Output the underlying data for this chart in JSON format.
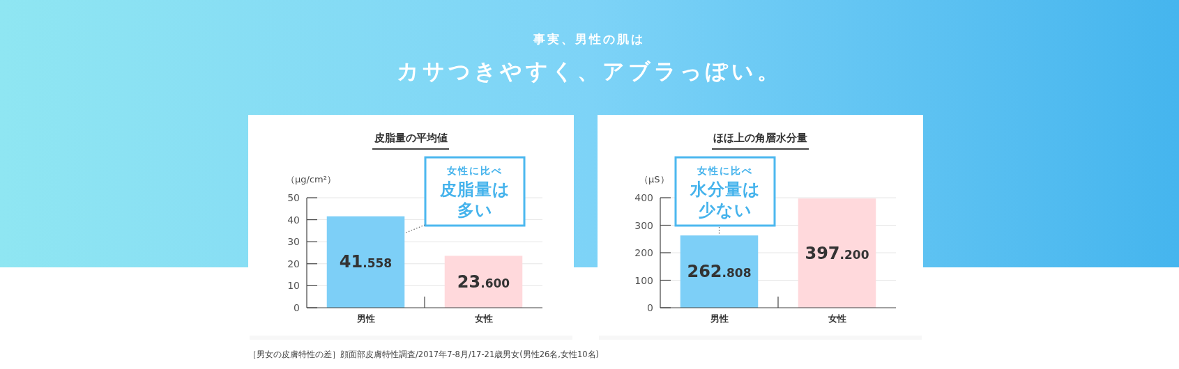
{
  "chart_data": [
    {
      "type": "other",
      "subtitle": "事実、男性の肌は",
      "title": "カサつきやすく、アブラっぽい。",
      "annotations": [
        "［男女の皮膚特性の差］顔面部皮膚特性調査/2017年7-8月/17-21歳男女(男性26名,女性10名)"
      ]
    },
    {
      "type": "bar",
      "title": "皮脂量の平均値",
      "ylabel": "（μg/cm²）",
      "categories": [
        "男性",
        "女性"
      ],
      "values": [
        41.558,
        23.6
      ],
      "colors": [
        "#7dcff7",
        "#ffd9dc"
      ],
      "value_labels": [
        "41.558",
        "23.600"
      ],
      "ylim": [
        0,
        50
      ],
      "yticks": [
        0,
        10,
        20,
        30,
        40,
        50
      ],
      "grid": "y",
      "annotations": [
        "女性に比べ皮脂量は多い"
      ]
    },
    {
      "type": "bar",
      "title": "ほほ上の角層水分量",
      "ylabel": "（μS）",
      "categories": [
        "男性",
        "女性"
      ],
      "values": [
        262.808,
        397.2
      ],
      "colors": [
        "#7dcff7",
        "#ffd9dc"
      ],
      "value_labels": [
        "262.808",
        "397.200"
      ],
      "ylim": [
        0,
        400
      ],
      "yticks": [
        0,
        100,
        200,
        300,
        400
      ],
      "grid": "y",
      "annotations": [
        "女性に比べ水分量は少ない"
      ]
    }
  ]
}
